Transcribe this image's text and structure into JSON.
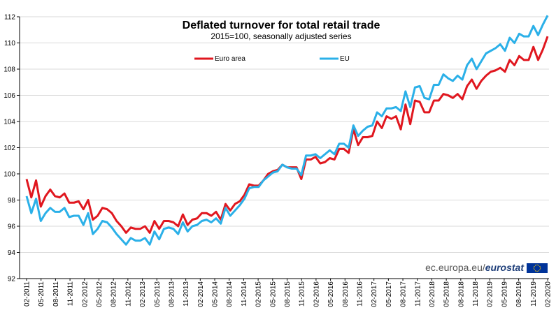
{
  "chart_data": {
    "type": "line",
    "title": "Deflated turnover for total retail trade",
    "subtitle": "2015=100,  seasonally adjusted series",
    "xlabel": "",
    "ylabel": "",
    "ylim": [
      92,
      112
    ],
    "yticks": [
      92,
      94,
      96,
      98,
      100,
      102,
      104,
      106,
      108,
      110,
      112
    ],
    "grid": true,
    "legend_position": "top-center",
    "x_tick_labels": [
      "02-2011",
      "05-2011",
      "08-2011",
      "11-2011",
      "02-2012",
      "05-2012",
      "08-2012",
      "11-2012",
      "02-2013",
      "05-2013",
      "08-2013",
      "11-2013",
      "02-2014",
      "05-2014",
      "08-2014",
      "11-2014",
      "02-2015",
      "05-2015",
      "08-2015",
      "11-2015",
      "02-2016",
      "05-2016",
      "08-2016",
      "11-2016",
      "02-2017",
      "05-2017",
      "08-2017",
      "11-2017",
      "02-2018",
      "05-2018",
      "08-2018",
      "11-2018",
      "02-2019",
      "05-2019",
      "08-2019",
      "11-2019",
      "02-2020"
    ],
    "x_start": "02-2011",
    "x_end": "02-2020",
    "series": [
      {
        "name": "Euro area",
        "color": "#e0171f",
        "values": [
          99.6,
          98.2,
          99.5,
          97.5,
          98.3,
          98.8,
          98.3,
          98.2,
          98.5,
          97.8,
          97.8,
          97.9,
          97.3,
          98.0,
          96.5,
          96.8,
          97.4,
          97.3,
          97.0,
          96.4,
          96.0,
          95.5,
          95.9,
          95.8,
          95.8,
          96.0,
          95.5,
          96.4,
          95.8,
          96.4,
          96.4,
          96.3,
          96.0,
          96.9,
          96.1,
          96.5,
          96.6,
          97.0,
          97.0,
          96.8,
          97.1,
          96.5,
          97.7,
          97.2,
          97.7,
          97.9,
          98.4,
          99.2,
          99.1,
          99.1,
          99.5,
          100.0,
          100.2,
          100.3,
          100.7,
          100.5,
          100.5,
          100.5,
          99.6,
          101.1,
          101.1,
          101.3,
          100.8,
          100.9,
          101.2,
          101.1,
          101.9,
          101.9,
          101.6,
          103.4,
          102.2,
          102.8,
          102.8,
          102.9,
          104.0,
          103.5,
          104.4,
          104.2,
          104.4,
          103.4,
          105.3,
          103.8,
          105.6,
          105.5,
          104.7,
          104.7,
          105.6,
          105.6,
          106.1,
          106.0,
          105.8,
          106.1,
          105.7,
          106.7,
          107.2,
          106.5,
          107.1,
          107.5,
          107.8,
          107.9,
          108.1,
          107.8,
          108.7,
          108.3,
          109.0,
          108.7,
          108.7,
          109.7,
          108.7,
          109.5,
          110.5
        ]
      },
      {
        "name": "EU",
        "color": "#2bb0e8",
        "values": [
          98.3,
          97.0,
          98.1,
          96.4,
          97.0,
          97.4,
          97.1,
          97.1,
          97.4,
          96.7,
          96.8,
          96.8,
          96.1,
          97.0,
          95.4,
          95.8,
          96.4,
          96.3,
          95.9,
          95.4,
          95.0,
          94.6,
          95.1,
          94.9,
          94.9,
          95.1,
          94.6,
          95.6,
          95.0,
          95.8,
          95.9,
          95.8,
          95.4,
          96.3,
          95.6,
          96.0,
          96.1,
          96.4,
          96.5,
          96.3,
          96.6,
          96.2,
          97.4,
          96.8,
          97.2,
          97.6,
          98.1,
          98.9,
          99.0,
          99.0,
          99.5,
          99.8,
          100.1,
          100.2,
          100.7,
          100.5,
          100.4,
          100.4,
          99.9,
          101.4,
          101.4,
          101.5,
          101.2,
          101.5,
          101.8,
          101.5,
          102.3,
          102.3,
          102.0,
          103.7,
          102.9,
          103.3,
          103.6,
          103.7,
          104.7,
          104.4,
          105.0,
          105.0,
          105.1,
          104.8,
          106.3,
          105.1,
          106.6,
          106.7,
          105.8,
          105.7,
          106.8,
          106.8,
          107.6,
          107.3,
          107.1,
          107.5,
          107.2,
          108.3,
          108.8,
          108.0,
          108.6,
          109.2,
          109.4,
          109.6,
          109.9,
          109.4,
          110.4,
          110.0,
          110.7,
          110.5,
          110.5,
          111.3,
          110.6,
          111.4,
          112.1
        ]
      }
    ]
  },
  "source": {
    "prefix": "ec.europa.eu/",
    "brand": "eurostat"
  },
  "flag_color": "#003399",
  "flag_star_color": "#ffcc00"
}
